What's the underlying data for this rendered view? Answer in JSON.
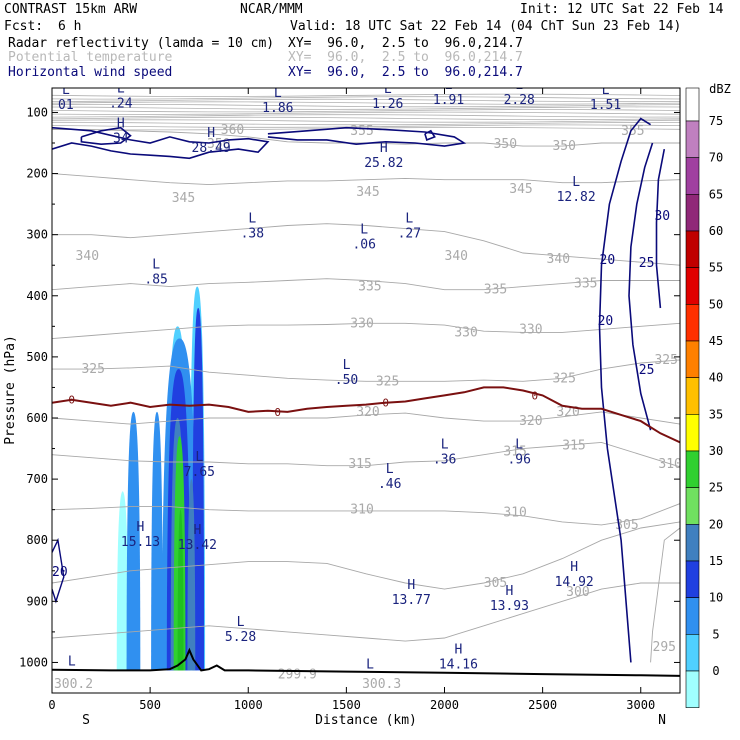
{
  "header": {
    "left_title": "CONTRAST 15km ARW",
    "center_title": "NCAR/MMM",
    "init": "Init: 12 UTC Sat 22 Feb 14",
    "fcst_label": "Fcst:",
    "fcst_value": "6 h",
    "valid": "Valid: 18 UTC Sat 22 Feb 14 (04 ChT Sun 23 Feb 14)"
  },
  "fields": [
    {
      "name": "Radar reflectivity (lamda = 10 cm)",
      "xy": "XY=  96.0,  2.5 to  96.0,214.7",
      "color": "#000000"
    },
    {
      "name": "Potential temperature",
      "xy": "XY=  96.0,  2.5 to  96.0,214.7",
      "color": "#b8b8b8"
    },
    {
      "name": "Horizontal wind speed",
      "xy": "XY=  96.0,  2.5 to  96.0,214.7",
      "color": "#0a0a7a"
    }
  ],
  "chart_data": {
    "type": "cross-section",
    "xlabel": "Distance (km)",
    "ylabel": "Pressure (hPa)",
    "xlim": [
      0,
      3200
    ],
    "ylim": [
      1050,
      60
    ],
    "xticks": [
      "0",
      "500",
      "1000",
      "1500",
      "2000",
      "2500",
      "3000"
    ],
    "yticks": [
      "100",
      "200",
      "300",
      "400",
      "500",
      "600",
      "700",
      "800",
      "900",
      "1000"
    ],
    "x_end_labels": {
      "left": "S",
      "right": "N"
    },
    "colorbar": {
      "unit": "dBZ",
      "levels": [
        "75",
        "70",
        "65",
        "60",
        "55",
        "50",
        "45",
        "40",
        "35",
        "30",
        "25",
        "20",
        "15",
        "10",
        "5",
        "0"
      ],
      "colors": [
        "#c080c0",
        "#a040a0",
        "#902878",
        "#c00000",
        "#e00000",
        "#ff3000",
        "#ff8000",
        "#ffc000",
        "#ffff00",
        "#30d030",
        "#70e060",
        "#4080c0",
        "#2040e0",
        "#3090f0",
        "#50d0ff",
        "#a0ffff"
      ]
    },
    "theta_labels": [
      {
        "text": "360",
        "x": 860,
        "p": 129
      },
      {
        "text": "355",
        "x": 1520,
        "p": 130
      },
      {
        "text": "355",
        "x": 2900,
        "p": 130
      },
      {
        "text": "350",
        "x": 2250,
        "p": 152
      },
      {
        "text": "350",
        "x": 2550,
        "p": 155
      },
      {
        "text": "350",
        "x": 790,
        "p": 152
      },
      {
        "text": "345",
        "x": 610,
        "p": 240
      },
      {
        "text": "345",
        "x": 1550,
        "p": 230
      },
      {
        "text": "345",
        "x": 2330,
        "p": 225
      },
      {
        "text": "340",
        "x": 120,
        "p": 335
      },
      {
        "text": "340",
        "x": 2000,
        "p": 335
      },
      {
        "text": "340",
        "x": 2520,
        "p": 340
      },
      {
        "text": "335",
        "x": 1560,
        "p": 385
      },
      {
        "text": "335",
        "x": 2200,
        "p": 390
      },
      {
        "text": "335",
        "x": 2660,
        "p": 380
      },
      {
        "text": "330",
        "x": 1520,
        "p": 445
      },
      {
        "text": "330",
        "x": 2050,
        "p": 460
      },
      {
        "text": "330",
        "x": 2380,
        "p": 455
      },
      {
        "text": "325",
        "x": 150,
        "p": 520
      },
      {
        "text": "325",
        "x": 1650,
        "p": 540
      },
      {
        "text": "325",
        "x": 2550,
        "p": 535
      },
      {
        "text": "325",
        "x": 3070,
        "p": 505
      },
      {
        "text": "320",
        "x": 1550,
        "p": 590
      },
      {
        "text": "320",
        "x": 2380,
        "p": 605
      },
      {
        "text": "320",
        "x": 2570,
        "p": 590
      },
      {
        "text": "315",
        "x": 1510,
        "p": 675
      },
      {
        "text": "315",
        "x": 2300,
        "p": 655
      },
      {
        "text": "315",
        "x": 2600,
        "p": 645
      },
      {
        "text": "310",
        "x": 1520,
        "p": 750
      },
      {
        "text": "310",
        "x": 2300,
        "p": 755
      },
      {
        "text": "310",
        "x": 3090,
        "p": 675
      },
      {
        "text": "305",
        "x": 2200,
        "p": 870
      },
      {
        "text": "305",
        "x": 2870,
        "p": 775
      },
      {
        "text": "300",
        "x": 2620,
        "p": 885
      },
      {
        "text": "295",
        "x": 3060,
        "p": 975
      },
      {
        "text": "299.9",
        "x": 1150,
        "p": 1020
      },
      {
        "text": "300.3",
        "x": 1580,
        "p": 1035
      },
      {
        "text": "300.2",
        "x": 10,
        "p": 1035
      }
    ],
    "extrema": [
      {
        "type": "L",
        "value": "01",
        "x": 30,
        "p": 70
      },
      {
        "type": "L",
        "value": ".24",
        "x": 310,
        "p": 67
      },
      {
        "type": "L",
        "value": "1.86",
        "x": 1110,
        "p": 75
      },
      {
        "type": "L",
        "value": "1.26",
        "x": 1670,
        "p": 68
      },
      {
        "type": "L",
        "value": "1.91",
        "x": 1980,
        "p": 62
      },
      {
        "type": "L",
        "value": "2.28",
        "x": 2340,
        "p": 62
      },
      {
        "type": "L",
        "value": "1.51",
        "x": 2780,
        "p": 70
      },
      {
        "type": "H",
        "value": "34",
        "x": 310,
        "p": 125
      },
      {
        "type": "H",
        "value": "28.49",
        "x": 770,
        "p": 140
      },
      {
        "type": "H",
        "value": "25.82",
        "x": 1650,
        "p": 165
      },
      {
        "type": "L",
        "value": "12.82",
        "x": 2630,
        "p": 220
      },
      {
        "type": "L",
        "value": ".38",
        "x": 980,
        "p": 280
      },
      {
        "type": "L",
        "value": ".06",
        "x": 1550,
        "p": 298
      },
      {
        "type": "L",
        "value": ".27",
        "x": 1780,
        "p": 280
      },
      {
        "type": "L",
        "value": ".85",
        "x": 490,
        "p": 355
      },
      {
        "type": "L",
        "value": ".50",
        "x": 1460,
        "p": 520
      },
      {
        "type": "L",
        "value": "7.65",
        "x": 710,
        "p": 670
      },
      {
        "type": "L",
        "value": ".36",
        "x": 1960,
        "p": 650
      },
      {
        "type": "L",
        "value": ".96",
        "x": 2340,
        "p": 650
      },
      {
        "type": "L",
        "value": ".46",
        "x": 1680,
        "p": 690
      },
      {
        "type": "H",
        "value": "15.13",
        "x": 410,
        "p": 785
      },
      {
        "type": "H",
        "value": "13.42",
        "x": 700,
        "p": 790
      },
      {
        "type": "H",
        "value": "14.92",
        "x": 2620,
        "p": 850
      },
      {
        "type": "H",
        "value": "13.77",
        "x": 1790,
        "p": 880
      },
      {
        "type": "H",
        "value": "13.93",
        "x": 2290,
        "p": 890
      },
      {
        "type": "L",
        "value": "5.28",
        "x": 920,
        "p": 940
      },
      {
        "type": "H",
        "value": "14.16",
        "x": 2030,
        "p": 985
      },
      {
        "type": "L",
        "value": "",
        "x": 60,
        "p": 1005
      },
      {
        "type": "L",
        "value": "",
        "x": 1580,
        "p": 1010
      }
    ],
    "wind_labels": [
      {
        "text": "20",
        "x": 2790,
        "p": 340
      },
      {
        "text": "20",
        "x": 2780,
        "p": 440
      },
      {
        "text": "25",
        "x": 2990,
        "p": 345
      },
      {
        "text": "30",
        "x": 3070,
        "p": 268
      },
      {
        "text": "25",
        "x": 2990,
        "p": 520
      },
      {
        "text": "20",
        "x": 0,
        "p": 850
      }
    ],
    "freezing_level": {
      "label": "0",
      "x": [
        0,
        100,
        200,
        300,
        400,
        500,
        600,
        700,
        800,
        900,
        1000,
        1100,
        1200,
        1300,
        1400,
        1500,
        1600,
        1700,
        1800,
        1900,
        2000,
        2100,
        2200,
        2300,
        2400,
        2500,
        2600,
        2700,
        2800,
        2900,
        3000,
        3100,
        3200
      ],
      "p": [
        575,
        570,
        575,
        580,
        575,
        582,
        578,
        580,
        578,
        582,
        590,
        588,
        590,
        585,
        582,
        580,
        578,
        575,
        573,
        568,
        563,
        558,
        550,
        550,
        555,
        563,
        580,
        585,
        585,
        595,
        605,
        625,
        640
      ]
    },
    "surface": {
      "x": [
        0,
        300,
        400,
        500,
        600,
        640,
        680,
        700,
        720,
        760,
        800,
        840,
        880,
        1000,
        1500,
        2000,
        2500,
        3000,
        3200
      ],
      "p": [
        1012,
        1013,
        1013,
        1013,
        1011,
        1005,
        995,
        980,
        995,
        1013,
        1011,
        1005,
        1013,
        1013,
        1015,
        1017,
        1019,
        1021,
        1022
      ]
    }
  }
}
